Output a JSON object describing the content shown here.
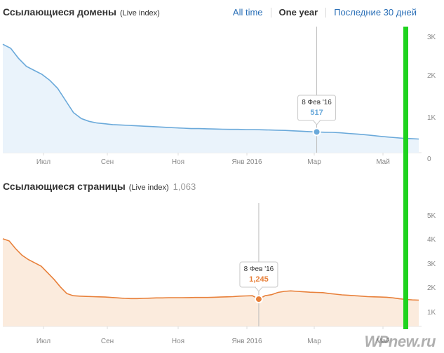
{
  "time_tabs": [
    {
      "label": "All time",
      "active": false
    },
    {
      "label": "One year",
      "active": true
    },
    {
      "label": "Последние 30 дней",
      "active": false
    }
  ],
  "watermark": {
    "text": "WPnew.ru"
  },
  "chart_data": [
    {
      "type": "area",
      "title": "Ссылающиеся домены",
      "subtitle": "(Live index)",
      "count": "",
      "color": "#6aa9da",
      "fill": "#eaf3fb",
      "x_ticks": [
        "Июл",
        "Сен",
        "Ноя",
        "Янв 2016",
        "Мар",
        "Май"
      ],
      "y_ticks": [
        "3K",
        "2K",
        "1K",
        "0"
      ],
      "ylim": [
        0,
        3000
      ],
      "x_range": [
        "2015-06",
        "2016-06"
      ],
      "series": [
        {
          "values": [
            2700,
            2600,
            2350,
            2150,
            2050,
            1950,
            1800,
            1600,
            1300,
            1000,
            850,
            780,
            740,
            720,
            700,
            690,
            680,
            670,
            660,
            650,
            640,
            630,
            620,
            610,
            600,
            600,
            595,
            590,
            585,
            580,
            580,
            575,
            575,
            570,
            565,
            560,
            555,
            545,
            535,
            525,
            517,
            510,
            505,
            495,
            480,
            465,
            450,
            430,
            410,
            390,
            375,
            360,
            350,
            340
          ]
        }
      ],
      "tooltip": {
        "date": "8 Фев '16",
        "value": "517",
        "index": 40
      }
    },
    {
      "type": "area",
      "title": "Ссылающиеся страницы",
      "subtitle": "(Live index)",
      "count": "1,063",
      "color": "#e8803a",
      "fill": "#fbebdd",
      "x_ticks": [
        "Июл",
        "Сен",
        "Ноя",
        "Янв 2016",
        "Мар",
        "Май"
      ],
      "y_ticks": [
        "5K",
        "4K",
        "3K",
        "2K",
        "1K"
      ],
      "ylim": [
        0,
        5500
      ],
      "x_range": [
        "2015-06",
        "2016-06"
      ],
      "series": [
        {
          "values": [
            4000,
            3900,
            3550,
            3250,
            3050,
            2900,
            2750,
            2450,
            2150,
            1800,
            1500,
            1400,
            1380,
            1370,
            1360,
            1350,
            1340,
            1320,
            1300,
            1280,
            1270,
            1270,
            1280,
            1290,
            1300,
            1300,
            1310,
            1310,
            1310,
            1315,
            1320,
            1320,
            1320,
            1330,
            1340,
            1350,
            1360,
            1380,
            1390,
            1400,
            1245,
            1400,
            1450,
            1550,
            1600,
            1620,
            1600,
            1580,
            1560,
            1550,
            1540,
            1500,
            1470,
            1440,
            1420,
            1400,
            1380,
            1360,
            1350,
            1340,
            1330,
            1300,
            1260,
            1230,
            1210,
            1200
          ]
        }
      ],
      "tooltip": {
        "date": "8 Фев '16",
        "value": "1,245",
        "index": 40
      }
    }
  ]
}
